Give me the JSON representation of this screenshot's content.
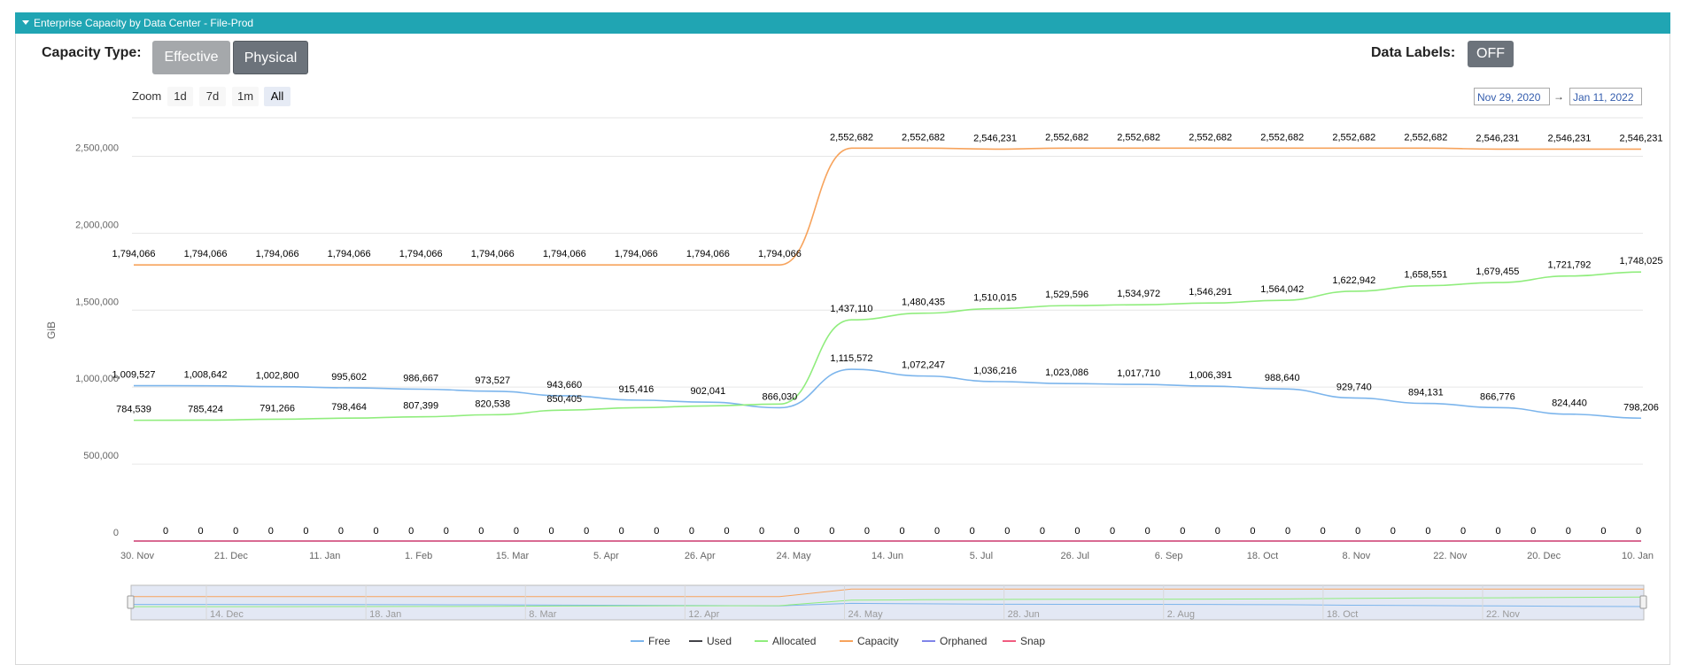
{
  "panel": {
    "title": "Enterprise Capacity by Data Center - File-Prod"
  },
  "controls": {
    "capacity_type_label": "Capacity Type:",
    "effective_label": "Effective",
    "physical_label": "Physical",
    "data_labels_label": "Data Labels:",
    "data_labels_toggle": "OFF"
  },
  "zoom": {
    "label": "Zoom",
    "buttons": [
      "1d",
      "7d",
      "1m",
      "All"
    ],
    "active": "All",
    "from": "Nov 29, 2020",
    "to": "Jan 11, 2022",
    "separator": "→"
  },
  "colors": {
    "header": "#20a5b3",
    "free": "#7cb5ec",
    "used": "#434348",
    "allocated": "#90ed7d",
    "capacity": "#f7a35c",
    "orphaned": "#8085e9",
    "snap": "#f15c80"
  },
  "chart_data": {
    "type": "line",
    "title": "",
    "xlabel": "",
    "ylabel": "GiB",
    "ylim": [
      0,
      2750000
    ],
    "y_ticks": [
      "0",
      "500,000",
      "1,000,000",
      "1,500,000",
      "2,000,000",
      "2,500,000"
    ],
    "x_ticks": [
      "30. Nov",
      "21. Dec",
      "11. Jan",
      "1. Feb",
      "15. Mar",
      "5. Apr",
      "26. Apr",
      "24. May",
      "14. Jun",
      "5. Jul",
      "26. Jul",
      "6. Sep",
      "18. Oct",
      "8. Nov",
      "22. Nov",
      "20. Dec",
      "10. Jan"
    ],
    "grid": true,
    "legend_position": "bottom",
    "series": [
      {
        "name": "Free",
        "color": "#7cb5ec",
        "values": [
          1009527,
          1008642,
          1002800,
          995602,
          986667,
          973527,
          943660,
          915416,
          902041,
          866030,
          1115572,
          1072247,
          1036216,
          1023086,
          1017710,
          1006391,
          988640,
          929740,
          894131,
          866776,
          824440,
          798206
        ],
        "labels": [
          "1,009,527",
          "1,008,642",
          "1,002,800",
          "995,602",
          "986,667",
          "973,527",
          "943,660",
          "915,416",
          "902,041",
          "866,030",
          "1,115,572",
          "1,072,247",
          "1,036,216",
          "1,023,086",
          "1,017,710",
          "1,006,391",
          "988,640",
          "929,740",
          "894,131",
          "866,776",
          "824,440",
          "798,206"
        ]
      },
      {
        "name": "Used",
        "color": "#434348",
        "values": [
          0,
          0,
          0,
          0,
          0,
          0,
          0,
          0,
          0,
          0,
          0,
          0,
          0,
          0,
          0,
          0,
          0,
          0,
          0,
          0,
          0,
          0,
          0,
          0,
          0,
          0,
          0,
          0,
          0,
          0,
          0,
          0,
          0,
          0,
          0,
          0,
          0,
          0,
          0,
          0,
          0,
          0,
          0
        ]
      },
      {
        "name": "Allocated",
        "color": "#90ed7d",
        "values": [
          784539,
          785424,
          791266,
          798464,
          807399,
          820538,
          850405,
          866030,
          878000,
          890000,
          1437110,
          1480435,
          1510015,
          1529596,
          1534972,
          1546291,
          1564042,
          1622942,
          1658551,
          1679455,
          1721792,
          1748025
        ],
        "labels": [
          "784,539",
          "785,424",
          "791,266",
          "798,464",
          "807,399",
          "820,538",
          "850,405",
          "",
          "",
          "",
          "1,437,110",
          "1,480,435",
          "1,510,015",
          "1,529,596",
          "1,534,972",
          "1,546,291",
          "1,564,042",
          "1,622,942",
          "1,658,551",
          "1,679,455",
          "1,721,792",
          "1,748,025"
        ]
      },
      {
        "name": "Capacity",
        "color": "#f7a35c",
        "values": [
          1794066,
          1794066,
          1794066,
          1794066,
          1794066,
          1794066,
          1794066,
          1794066,
          1794066,
          1794066,
          2552682,
          2552682,
          2546231,
          2552682,
          2552682,
          2552682,
          2552682,
          2552682,
          2552682,
          2546231,
          2546231,
          2546231
        ],
        "labels": [
          "1,794,066",
          "1,794,066",
          "1,794,066",
          "1,794,066",
          "1,794,066",
          "1,794,066",
          "1,794,066",
          "1,794,066",
          "1,794,066",
          "1,794,066",
          "2,552,682",
          "2,552,682",
          "2,546,231",
          "2,552,682",
          "2,552,682",
          "2,552,682",
          "2,552,682",
          "2,552,682",
          "2,552,682",
          "2,546,231",
          "2,546,231",
          "2,546,231"
        ]
      },
      {
        "name": "Orphaned",
        "color": "#8085e9",
        "values": [
          0,
          0,
          0,
          0,
          0,
          0,
          0,
          0,
          0,
          0,
          0,
          0,
          0,
          0,
          0,
          0,
          0,
          0,
          0,
          0,
          0,
          0,
          0,
          0,
          0,
          0,
          0,
          0,
          0,
          0,
          0,
          0,
          0,
          0,
          0,
          0,
          0,
          0,
          0,
          0,
          0,
          0,
          0
        ]
      },
      {
        "name": "Snap",
        "color": "#f15c80",
        "values": [
          0,
          0,
          0,
          0,
          0,
          0,
          0,
          0,
          0,
          0,
          0,
          0,
          0,
          0,
          0,
          0,
          0,
          0,
          0,
          0,
          0,
          0,
          0,
          0,
          0,
          0,
          0,
          0,
          0,
          0,
          0,
          0,
          0,
          0,
          0,
          0,
          0,
          0,
          0,
          0,
          0,
          0,
          0
        ]
      }
    ],
    "zero_labels": [
      "0",
      "0",
      "0",
      "0",
      "0",
      "0",
      "0",
      "0",
      "0",
      "0",
      "0",
      "0",
      "0",
      "0",
      "0",
      "0",
      "0",
      "0",
      "0",
      "0",
      "0",
      "0",
      "0",
      "0",
      "0",
      "0",
      "0",
      "0",
      "0",
      "0",
      "0",
      "0",
      "0",
      "0",
      "0",
      "0",
      "0",
      "0",
      "0",
      "0",
      "0",
      "0",
      "0"
    ],
    "navigator_ticks": [
      "14. Dec",
      "18. Jan",
      "8. Mar",
      "12. Apr",
      "24. May",
      "28. Jun",
      "2. Aug",
      "18. Oct",
      "22. Nov"
    ]
  }
}
